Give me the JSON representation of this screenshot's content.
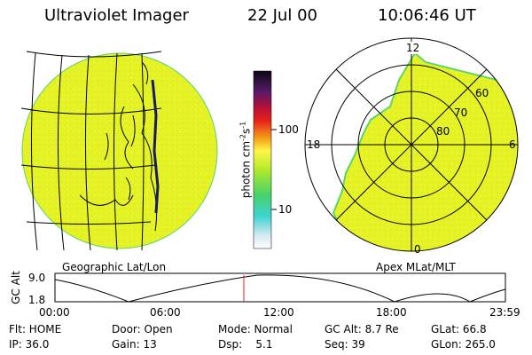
{
  "header": {
    "title": "Ultraviolet Imager",
    "date": "22 Jul 00",
    "time": "10:06:46 UT"
  },
  "colorbar": {
    "label_photon": "photon cm",
    "label_sup1": "-2",
    "label_s": "s",
    "label_sup2": "-1",
    "tick_100": "100",
    "tick_10": "10"
  },
  "polar_plot": {
    "label_12": "12",
    "label_18": "18",
    "label_6": "6",
    "label_0": "0",
    "label_60": "60",
    "label_70": "70",
    "label_80": "80"
  },
  "panel_labels": {
    "geographic": "Geographic Lat/Lon",
    "apex": "Apex MLat/MLT"
  },
  "altitude_plot": {
    "ylabel": "GC Alt",
    "y_high": "9.0",
    "y_low": "1.8",
    "x_ticks": [
      "00:00",
      "06:00",
      "12:00",
      "18:00",
      "23:59"
    ]
  },
  "footer": {
    "row1": {
      "flt": "Flt: HOME",
      "door": "Door: Open",
      "mode": "Mode: Normal",
      "gc_alt": "GC Alt: 8.7 Re",
      "glat": "GLat:  66.8"
    },
    "row2": {
      "ip": "IP: 36.0",
      "gain": "Gain: 13",
      "dsp": "Dsp:    5.1",
      "seq": "Seq: 39",
      "glon": "GLon: 265.0"
    }
  },
  "colors": {
    "image_fill": "#e5f224",
    "image_edge": "#5ed36e",
    "marker": "#e02020"
  }
}
